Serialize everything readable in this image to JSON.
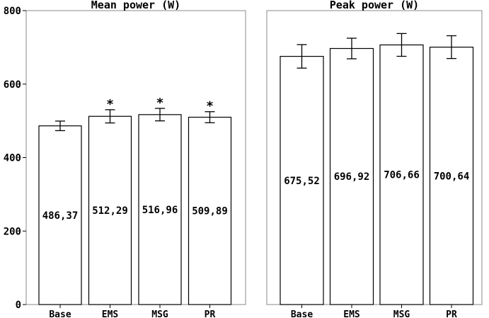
{
  "chart_data": [
    {
      "type": "bar",
      "title": "Mean power (W)",
      "categories": [
        "Base",
        "EMS",
        "MSG",
        "PR"
      ],
      "values": [
        486.37,
        512.29,
        516.96,
        509.89
      ],
      "value_labels": [
        "486,37",
        "512,29",
        "516,96",
        "509,89"
      ],
      "error": [
        13,
        18,
        17,
        15
      ],
      "annotations": [
        "",
        "*",
        "*",
        "*"
      ],
      "ylim": [
        0,
        800
      ],
      "yticks": [
        0,
        200,
        400,
        600,
        800
      ],
      "show_y_axis": true
    },
    {
      "type": "bar",
      "title": "Peak power (W)",
      "categories": [
        "Base",
        "EMS",
        "MSG",
        "PR"
      ],
      "values": [
        675.52,
        696.92,
        706.66,
        700.64
      ],
      "value_labels": [
        "675,52",
        "696,92",
        "706,66",
        "700,64"
      ],
      "error": [
        32,
        28,
        31,
        31
      ],
      "annotations": [
        "",
        "",
        "",
        ""
      ],
      "ylim": [
        0,
        800
      ],
      "yticks": [
        0,
        200,
        400,
        600,
        800
      ],
      "show_y_axis": false
    }
  ]
}
